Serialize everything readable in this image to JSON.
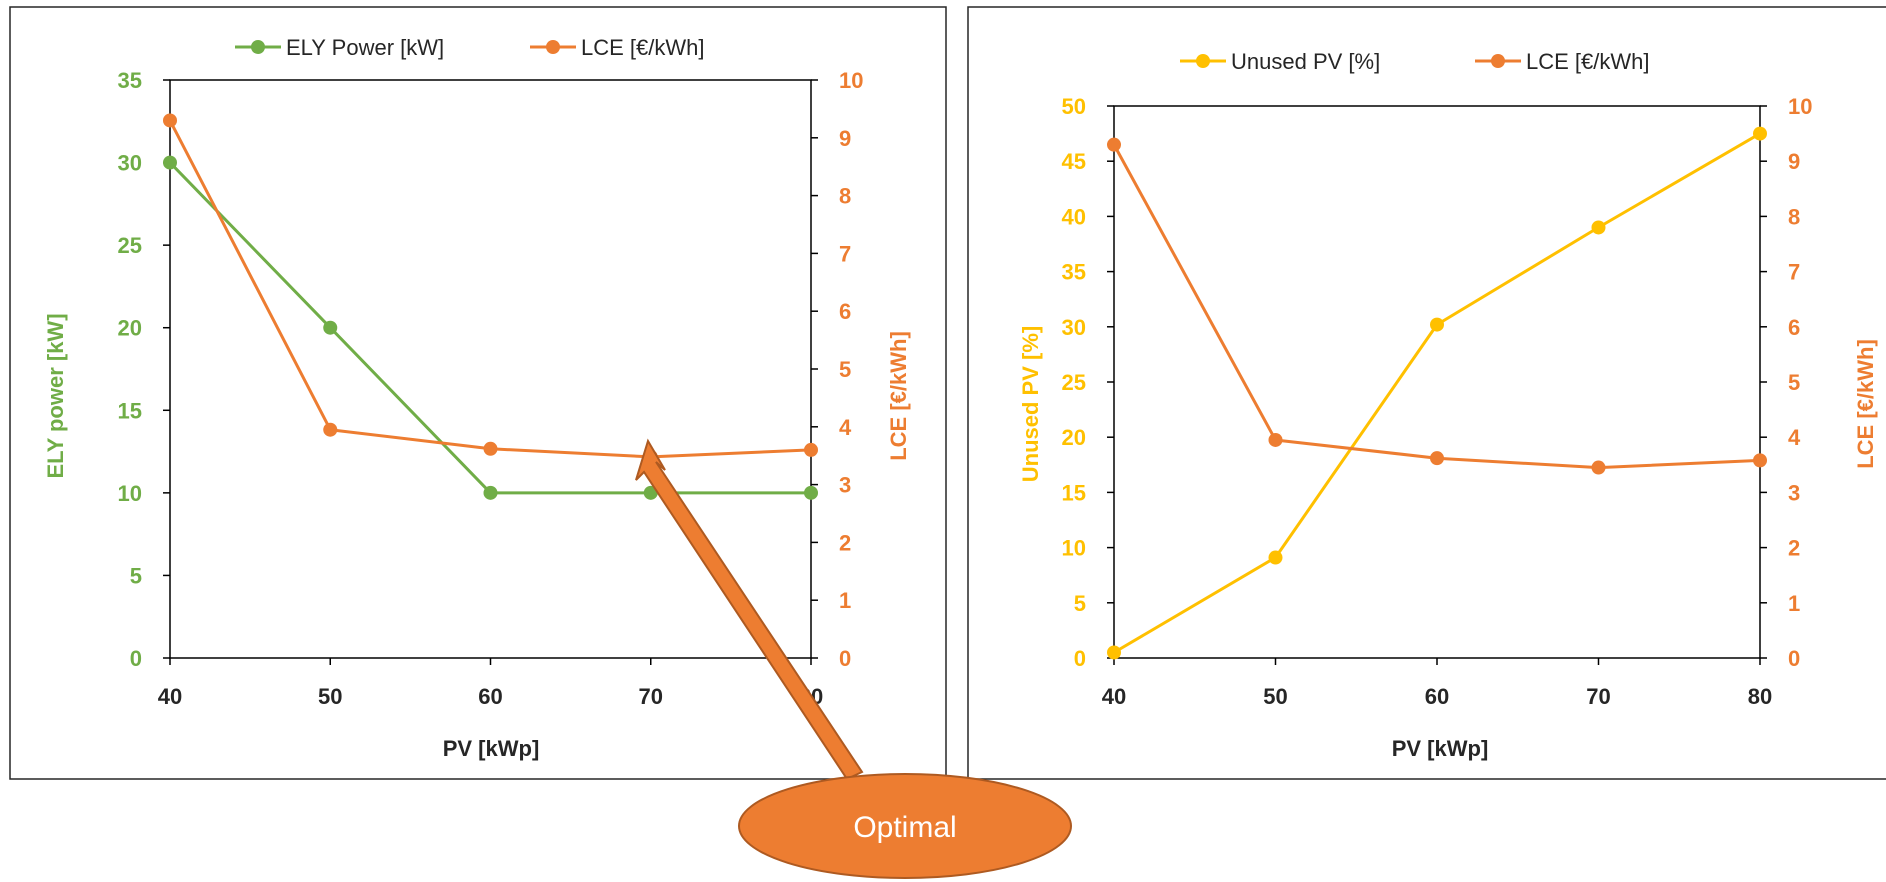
{
  "colors": {
    "green": "#70AD47",
    "orange": "#ED7D31",
    "yellow": "#FFC000",
    "axis_text": "#262626",
    "frame": "#262626"
  },
  "chart_data": [
    {
      "type": "line",
      "x": [
        40,
        50,
        60,
        70,
        80
      ],
      "xlabel": "PV [kWp]",
      "xlim": [
        40,
        80
      ],
      "x_ticks": [
        "40",
        "50",
        "60",
        "70",
        "80"
      ],
      "grid": false,
      "legend_position": "top",
      "left_axis": {
        "label": "ELY power [kW]",
        "lim": [
          0,
          35
        ],
        "ticks": [
          "0",
          "5",
          "10",
          "15",
          "20",
          "25",
          "30",
          "35"
        ],
        "color": "#70AD47"
      },
      "right_axis": {
        "label": "LCE [€/kWh]",
        "lim": [
          0,
          10
        ],
        "ticks": [
          "0",
          "1",
          "2",
          "3",
          "4",
          "5",
          "6",
          "7",
          "8",
          "9",
          "10"
        ],
        "color": "#ED7D31"
      },
      "series": [
        {
          "name": "ELY Power [kW]",
          "axis": "left",
          "color": "#70AD47",
          "values": [
            30,
            20,
            10,
            10,
            10
          ]
        },
        {
          "name": "LCE [€/kWh]",
          "axis": "right",
          "color": "#ED7D31",
          "values": [
            9.3,
            3.95,
            3.62,
            3.48,
            3.6
          ]
        }
      ]
    },
    {
      "type": "line",
      "x": [
        40,
        50,
        60,
        70,
        80
      ],
      "xlabel": "PV [kWp]",
      "xlim": [
        40,
        80
      ],
      "x_ticks": [
        "40",
        "50",
        "60",
        "70",
        "80"
      ],
      "grid": false,
      "legend_position": "top",
      "left_axis": {
        "label": "Unused PV [%]",
        "lim": [
          0,
          50
        ],
        "ticks": [
          "0",
          "5",
          "10",
          "15",
          "20",
          "25",
          "30",
          "35",
          "40",
          "45",
          "50"
        ],
        "color": "#FFC000"
      },
      "right_axis": {
        "label": "LCE [€/kWh]",
        "lim": [
          0,
          10
        ],
        "ticks": [
          "0",
          "1",
          "2",
          "3",
          "4",
          "5",
          "6",
          "7",
          "8",
          "9",
          "10"
        ],
        "color": "#ED7D31"
      },
      "series": [
        {
          "name": "Unused PV [%]",
          "axis": "left",
          "color": "#FFC000",
          "values": [
            0.5,
            9.1,
            30.2,
            39.0,
            47.5
          ]
        },
        {
          "name": "LCE [€/kWh]",
          "axis": "right",
          "color": "#ED7D31",
          "values": [
            9.3,
            3.95,
            3.62,
            3.45,
            3.58
          ]
        }
      ]
    }
  ],
  "annotation": {
    "text": "Optimal",
    "points_to": {
      "chart": 0,
      "x": 70,
      "series": "LCE [€/kWh]",
      "value": 3.48
    }
  }
}
